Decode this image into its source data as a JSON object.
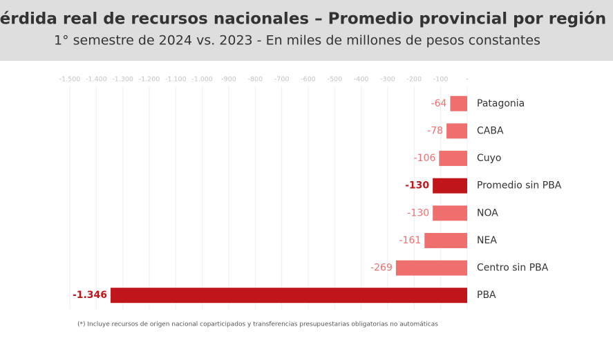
{
  "chart_data": {
    "type": "bar",
    "orientation": "horizontal",
    "title": "Pérdida real de recursos nacionales – Promedio provincial por región",
    "subtitle": "1° semestre de 2024 vs. 2023 - En miles de millones de pesos constantes",
    "categories": [
      "Patagonia",
      "CABA",
      "Cuyo",
      "Promedio sin PBA",
      "NOA",
      "NEA",
      "Centro sin PBA",
      "PBA"
    ],
    "values": [
      -64,
      -78,
      -106,
      -130,
      -130,
      -161,
      -269,
      -1346
    ],
    "value_labels": [
      "-64",
      "-78",
      "-106",
      "-130",
      "-130",
      "-161",
      "-269",
      "-1.346"
    ],
    "color": "#ef6e6e",
    "bar_colors": [
      "#ef6e6e",
      "#ef6e6e",
      "#ef6e6e",
      "#c0161b",
      "#ef6e6e",
      "#ef6e6e",
      "#ef6e6e",
      "#c0161b"
    ],
    "xlim": [
      -1500,
      0
    ],
    "xticks": [
      {
        "value": -1500,
        "label": "-1.500"
      },
      {
        "value": -1400,
        "label": "-1.400"
      },
      {
        "value": -1300,
        "label": "-1.300"
      },
      {
        "value": -1200,
        "label": "-1.200"
      },
      {
        "value": -1100,
        "label": "-1.100"
      },
      {
        "value": -1000,
        "label": "-1.000"
      },
      -900,
      -800,
      -700,
      -600,
      -500,
      -400,
      -300,
      -200,
      -100,
      {
        "value": 0,
        "label": "-"
      }
    ],
    "grid": true,
    "footnote": "(*) Incluye recursos de origen nacional coparticipados y transferencias presupuestarias obligatorias no automáticas"
  }
}
